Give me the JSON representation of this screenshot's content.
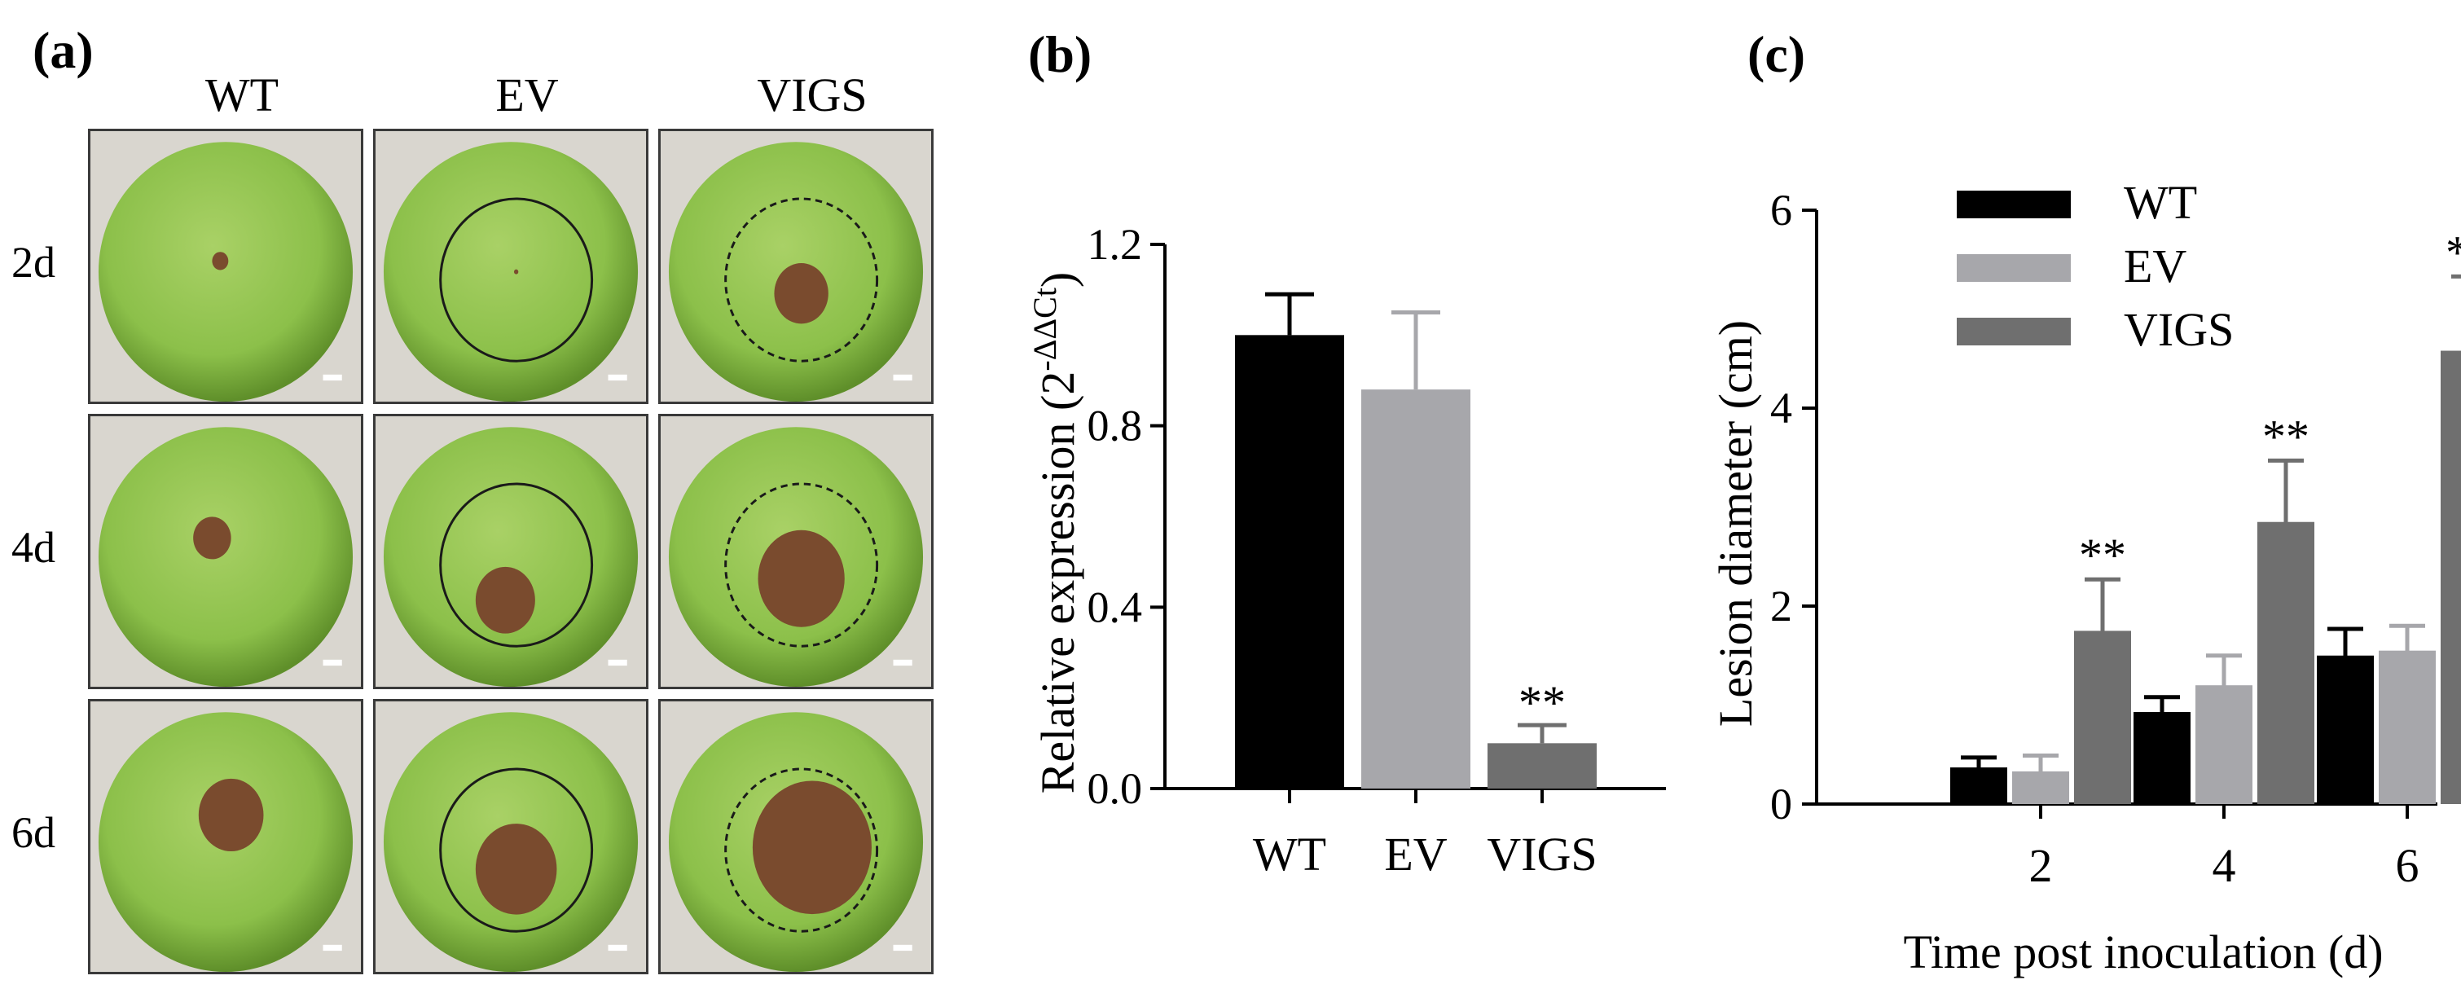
{
  "panel_a": {
    "letter": "(a)",
    "columns": [
      "WT",
      "EV",
      "VIGS"
    ],
    "rows": [
      "2d",
      "4d",
      "6d"
    ],
    "lesion_color": "#7a4b2e",
    "fruit_color": "#8cc04a"
  },
  "chart_data": [
    {
      "panel": "(b)",
      "type": "bar",
      "categories": [
        "WT",
        "EV",
        "VIGS"
      ],
      "values": [
        1.0,
        0.88,
        0.1
      ],
      "errors": [
        0.09,
        0.17,
        0.04
      ],
      "colors": [
        "#000000",
        "#a7a7ab",
        "#6f6f6f"
      ],
      "significance": [
        "",
        "",
        "**"
      ],
      "ylabel_main": "Relative expression (2",
      "ylabel_sup": "-ΔΔCt",
      "ylabel_close": ")",
      "ylim": [
        0,
        1.2
      ],
      "yticks": [
        0.0,
        0.4,
        0.8,
        1.2
      ],
      "ytick_labels": [
        "0.0",
        "0.4",
        "0.8",
        "1.2"
      ]
    },
    {
      "panel": "(c)",
      "type": "bar",
      "categories": [
        "2",
        "4",
        "6"
      ],
      "series": [
        {
          "name": "WT",
          "values": [
            0.37,
            0.93,
            1.5
          ],
          "errors": [
            0.1,
            0.15,
            0.27
          ],
          "color": "#000000"
        },
        {
          "name": "EV",
          "values": [
            0.33,
            1.2,
            1.55
          ],
          "errors": [
            0.16,
            0.3,
            0.25
          ],
          "color": "#a7a7ab"
        },
        {
          "name": "VIGS",
          "values": [
            1.75,
            2.85,
            4.58
          ],
          "errors": [
            0.52,
            0.62,
            0.75
          ],
          "color": "#6f6f6f"
        }
      ],
      "significance": [
        "**",
        "**",
        "**"
      ],
      "xlabel": "Time post inoculation (d)",
      "ylabel": "Lesion diameter (cm)",
      "ylim": [
        0,
        6
      ],
      "yticks": [
        0,
        2,
        4,
        6
      ],
      "ytick_labels": [
        "0",
        "2",
        "4",
        "6"
      ],
      "legend_position": "top-left"
    }
  ]
}
